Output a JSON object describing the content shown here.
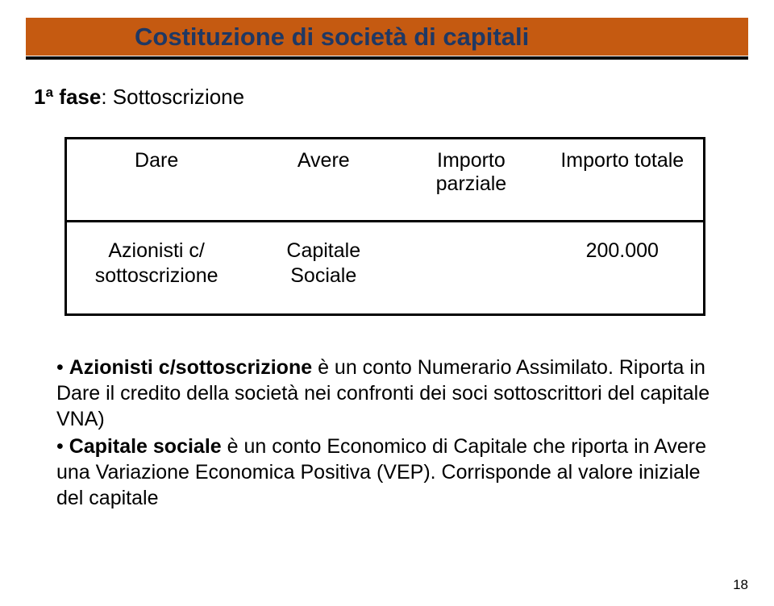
{
  "title": "Costituzione di società di capitali",
  "phase": {
    "bold": "1ª fase",
    "rest": ": Sottoscrizione"
  },
  "table": {
    "headers": {
      "c1": "Dare",
      "c2": "Avere",
      "c3": "Importo parziale",
      "c4": "Importo totale"
    },
    "row": {
      "c1": "Azionisti c/ sottoscrizione",
      "c2": "Capitale Sociale",
      "c3": "",
      "c4": "200.000"
    }
  },
  "bullets": {
    "b1_lead": "• ",
    "b1_bold": "Azionisti c/sottoscrizione ",
    "b1_rest": "è un conto Numerario Assimilato. Riporta in Dare il credito della società nei confronti dei soci sottoscrittori del capitale VNA)",
    "b2_lead": "• ",
    "b2_bold": "Capitale sociale ",
    "b2_rest": "è un conto Economico di Capitale che riporta in Avere una Variazione Economica Positiva (VEP). Corrisponde al valore iniziale del capitale"
  },
  "page_number": "18"
}
